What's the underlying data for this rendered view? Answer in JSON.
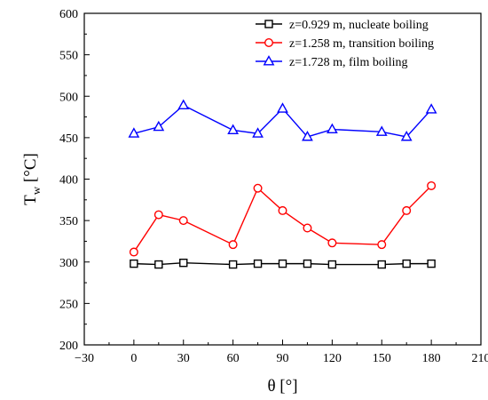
{
  "chart_data": {
    "type": "line",
    "title": "",
    "xlabel": "θ [°]",
    "ylabel_main": "T",
    "ylabel_sub": "w",
    "ylabel_unit": "[°C]",
    "xlim": [
      -30,
      210
    ],
    "ylim": [
      200,
      600
    ],
    "xticks": [
      -30,
      0,
      30,
      60,
      90,
      120,
      150,
      180,
      210
    ],
    "yticks": [
      200,
      250,
      300,
      350,
      400,
      450,
      500,
      550,
      600
    ],
    "grid": false,
    "legend_position": "top-right",
    "series": [
      {
        "name": "z=0.929 m, nucleate boiling",
        "color": "#000000",
        "marker": "square",
        "x": [
          0,
          15,
          30,
          60,
          75,
          90,
          105,
          120,
          150,
          165,
          180
        ],
        "y": [
          298,
          297,
          299,
          297,
          298,
          298,
          298,
          297,
          297,
          298,
          298
        ]
      },
      {
        "name": "z=1.258 m, transition boiling",
        "color": "#ff0000",
        "marker": "circle",
        "x": [
          0,
          15,
          30,
          60,
          75,
          90,
          105,
          120,
          150,
          165,
          180
        ],
        "y": [
          312,
          357,
          350,
          321,
          389,
          362,
          341,
          323,
          321,
          362,
          392
        ]
      },
      {
        "name": "z=1.728 m, film boiling",
        "color": "#0000ff",
        "marker": "triangle",
        "x": [
          0,
          15,
          30,
          60,
          75,
          90,
          105,
          120,
          150,
          165,
          180
        ],
        "y": [
          455,
          463,
          489,
          459,
          455,
          485,
          451,
          460,
          457,
          451,
          484
        ]
      }
    ]
  }
}
